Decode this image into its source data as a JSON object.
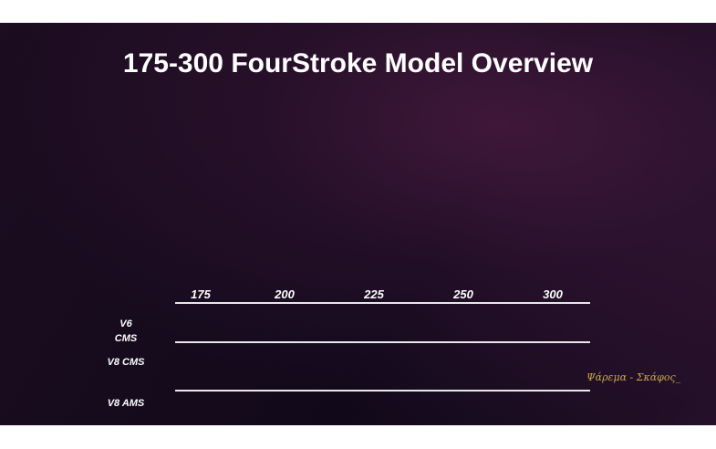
{
  "slide": {
    "title": "175-300 FourStroke Model Overview",
    "columns": [
      "175",
      "200",
      "225",
      "250",
      "300"
    ],
    "rows": [
      [
        "V6",
        "CMS"
      ],
      [
        "V8 CMS"
      ],
      [
        "V8 AMS"
      ]
    ],
    "watermark": "Ψάρεμα - Σκάφος_"
  }
}
